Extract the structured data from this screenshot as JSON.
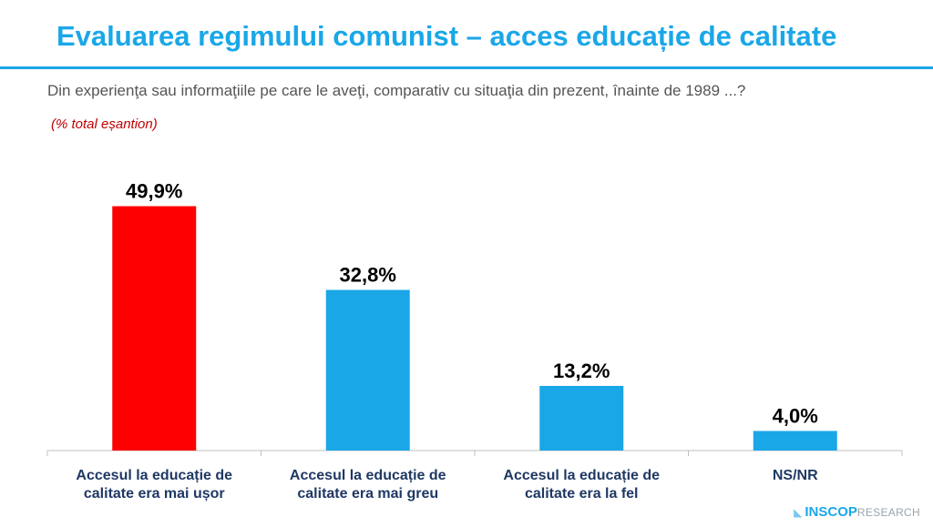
{
  "header": {
    "title": "Evaluarea regimului comunist – acces educație de calitate",
    "question": "Din experienţa sau informaţiile pe care le aveţi, comparativ cu situaţia din prezent, înainte de 1989 ...?",
    "note": "(% total eșantion)"
  },
  "chart_data": {
    "type": "bar",
    "categories": [
      [
        "Accesul la educație de",
        "calitate era mai ușor"
      ],
      [
        "Accesul la educație de",
        "calitate era mai greu"
      ],
      [
        "Accesul la educație de",
        "calitate era la fel"
      ],
      [
        "NS/NR"
      ]
    ],
    "values": [
      49.9,
      32.8,
      13.2,
      4.0
    ],
    "data_labels": [
      "49,9%",
      "32,8%",
      "13,2%",
      "4,0%"
    ],
    "bar_colors": [
      "#ff0000",
      "#1aa7e8",
      "#1aa7e8",
      "#1aa7e8"
    ],
    "ylim": [
      0,
      50
    ],
    "grid": false,
    "legend": "none"
  },
  "brand": {
    "name": "INSCOP",
    "suffix": "RESEARCH"
  },
  "colors": {
    "accent": "#1aa7e8",
    "highlight": "#ff0000",
    "axis": "#bfbfbf",
    "category_text": "#1f3864"
  }
}
